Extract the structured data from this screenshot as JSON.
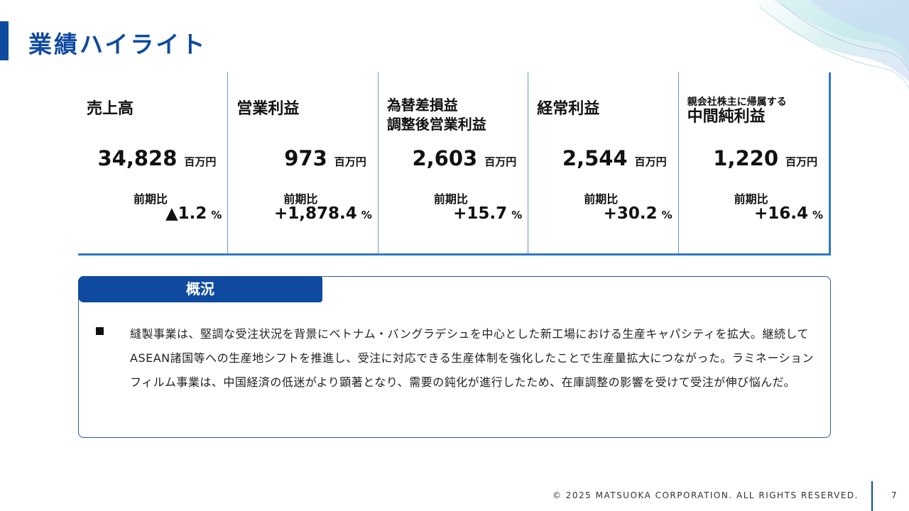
{
  "header": {
    "title": "業績ハイライト"
  },
  "kpis": [
    {
      "label": "売上高",
      "value": "34,828",
      "unit": "百万円",
      "cmp_label": "前期比",
      "cmp_value": "▲1.2",
      "cmp_unit": "%"
    },
    {
      "label": "営業利益",
      "value": "973",
      "unit": "百万円",
      "cmp_label": "前期比",
      "cmp_value": "+1,878.4",
      "cmp_unit": "%"
    },
    {
      "label_line1": "為替差損益",
      "label_line2": "調整後営業利益",
      "value": "2,603",
      "unit": "百万円",
      "cmp_label": "前期比",
      "cmp_value": "+15.7",
      "cmp_unit": "%"
    },
    {
      "label": "経常利益",
      "value": "2,544",
      "unit": "百万円",
      "cmp_label": "前期比",
      "cmp_value": "+30.2",
      "cmp_unit": "%"
    },
    {
      "label_line1": "親会社株主に帰属する",
      "label_line2": "中間純利益",
      "value": "1,220",
      "unit": "百万円",
      "cmp_label": "前期比",
      "cmp_value": "+16.4",
      "cmp_unit": "%"
    }
  ],
  "overview": {
    "heading": "概況",
    "text": "縫製事業は、堅調な受注状況を背景にベトナム・バングラデシュを中心とした新工場における生産キャパシティを拡大。継続してASEAN諸国等への生産地シフトを推進し、受注に対応できる生産体制を強化したことで生産量拡大につながった。ラミネーションフィルム事業は、中国経済の低迷がより顕著となり、需要の鈍化が進行したため、在庫調整の影響を受けて受注が伸び悩んだ。"
  },
  "footer": {
    "copyright": "© 2025 MATSUOKA CORPORATION. ALL RIGHTS RESERVED.",
    "page": "7"
  },
  "colors": {
    "accent": "#0e4aa0",
    "border": "#2f78c6"
  }
}
